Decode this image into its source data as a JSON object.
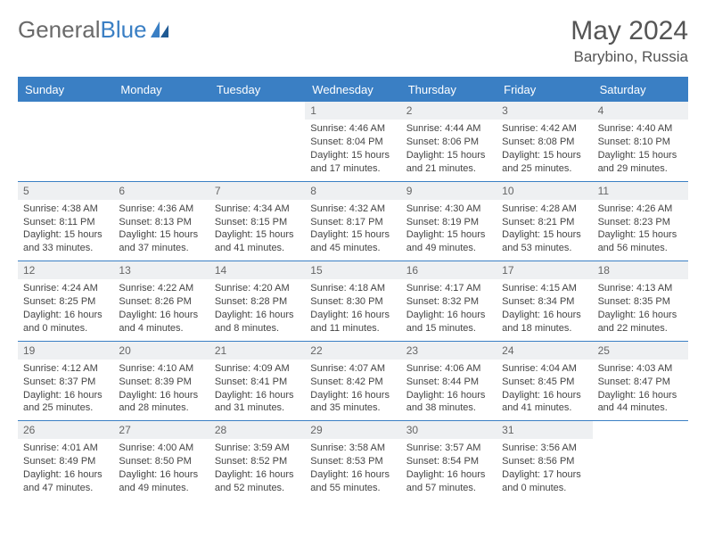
{
  "brand": {
    "part1": "General",
    "part2": "Blue"
  },
  "title": "May 2024",
  "location": "Barybino, Russia",
  "colors": {
    "primary": "#3a7fc4",
    "header_text": "#555555",
    "body_text": "#444444",
    "daynum_bg": "#eef0f2",
    "background": "#ffffff"
  },
  "dow": [
    "Sunday",
    "Monday",
    "Tuesday",
    "Wednesday",
    "Thursday",
    "Friday",
    "Saturday"
  ],
  "weeks": [
    [
      null,
      null,
      null,
      {
        "n": "1",
        "sr": "Sunrise: 4:46 AM",
        "ss": "Sunset: 8:04 PM",
        "d1": "Daylight: 15 hours",
        "d2": "and 17 minutes."
      },
      {
        "n": "2",
        "sr": "Sunrise: 4:44 AM",
        "ss": "Sunset: 8:06 PM",
        "d1": "Daylight: 15 hours",
        "d2": "and 21 minutes."
      },
      {
        "n": "3",
        "sr": "Sunrise: 4:42 AM",
        "ss": "Sunset: 8:08 PM",
        "d1": "Daylight: 15 hours",
        "d2": "and 25 minutes."
      },
      {
        "n": "4",
        "sr": "Sunrise: 4:40 AM",
        "ss": "Sunset: 8:10 PM",
        "d1": "Daylight: 15 hours",
        "d2": "and 29 minutes."
      }
    ],
    [
      {
        "n": "5",
        "sr": "Sunrise: 4:38 AM",
        "ss": "Sunset: 8:11 PM",
        "d1": "Daylight: 15 hours",
        "d2": "and 33 minutes."
      },
      {
        "n": "6",
        "sr": "Sunrise: 4:36 AM",
        "ss": "Sunset: 8:13 PM",
        "d1": "Daylight: 15 hours",
        "d2": "and 37 minutes."
      },
      {
        "n": "7",
        "sr": "Sunrise: 4:34 AM",
        "ss": "Sunset: 8:15 PM",
        "d1": "Daylight: 15 hours",
        "d2": "and 41 minutes."
      },
      {
        "n": "8",
        "sr": "Sunrise: 4:32 AM",
        "ss": "Sunset: 8:17 PM",
        "d1": "Daylight: 15 hours",
        "d2": "and 45 minutes."
      },
      {
        "n": "9",
        "sr": "Sunrise: 4:30 AM",
        "ss": "Sunset: 8:19 PM",
        "d1": "Daylight: 15 hours",
        "d2": "and 49 minutes."
      },
      {
        "n": "10",
        "sr": "Sunrise: 4:28 AM",
        "ss": "Sunset: 8:21 PM",
        "d1": "Daylight: 15 hours",
        "d2": "and 53 minutes."
      },
      {
        "n": "11",
        "sr": "Sunrise: 4:26 AM",
        "ss": "Sunset: 8:23 PM",
        "d1": "Daylight: 15 hours",
        "d2": "and 56 minutes."
      }
    ],
    [
      {
        "n": "12",
        "sr": "Sunrise: 4:24 AM",
        "ss": "Sunset: 8:25 PM",
        "d1": "Daylight: 16 hours",
        "d2": "and 0 minutes."
      },
      {
        "n": "13",
        "sr": "Sunrise: 4:22 AM",
        "ss": "Sunset: 8:26 PM",
        "d1": "Daylight: 16 hours",
        "d2": "and 4 minutes."
      },
      {
        "n": "14",
        "sr": "Sunrise: 4:20 AM",
        "ss": "Sunset: 8:28 PM",
        "d1": "Daylight: 16 hours",
        "d2": "and 8 minutes."
      },
      {
        "n": "15",
        "sr": "Sunrise: 4:18 AM",
        "ss": "Sunset: 8:30 PM",
        "d1": "Daylight: 16 hours",
        "d2": "and 11 minutes."
      },
      {
        "n": "16",
        "sr": "Sunrise: 4:17 AM",
        "ss": "Sunset: 8:32 PM",
        "d1": "Daylight: 16 hours",
        "d2": "and 15 minutes."
      },
      {
        "n": "17",
        "sr": "Sunrise: 4:15 AM",
        "ss": "Sunset: 8:34 PM",
        "d1": "Daylight: 16 hours",
        "d2": "and 18 minutes."
      },
      {
        "n": "18",
        "sr": "Sunrise: 4:13 AM",
        "ss": "Sunset: 8:35 PM",
        "d1": "Daylight: 16 hours",
        "d2": "and 22 minutes."
      }
    ],
    [
      {
        "n": "19",
        "sr": "Sunrise: 4:12 AM",
        "ss": "Sunset: 8:37 PM",
        "d1": "Daylight: 16 hours",
        "d2": "and 25 minutes."
      },
      {
        "n": "20",
        "sr": "Sunrise: 4:10 AM",
        "ss": "Sunset: 8:39 PM",
        "d1": "Daylight: 16 hours",
        "d2": "and 28 minutes."
      },
      {
        "n": "21",
        "sr": "Sunrise: 4:09 AM",
        "ss": "Sunset: 8:41 PM",
        "d1": "Daylight: 16 hours",
        "d2": "and 31 minutes."
      },
      {
        "n": "22",
        "sr": "Sunrise: 4:07 AM",
        "ss": "Sunset: 8:42 PM",
        "d1": "Daylight: 16 hours",
        "d2": "and 35 minutes."
      },
      {
        "n": "23",
        "sr": "Sunrise: 4:06 AM",
        "ss": "Sunset: 8:44 PM",
        "d1": "Daylight: 16 hours",
        "d2": "and 38 minutes."
      },
      {
        "n": "24",
        "sr": "Sunrise: 4:04 AM",
        "ss": "Sunset: 8:45 PM",
        "d1": "Daylight: 16 hours",
        "d2": "and 41 minutes."
      },
      {
        "n": "25",
        "sr": "Sunrise: 4:03 AM",
        "ss": "Sunset: 8:47 PM",
        "d1": "Daylight: 16 hours",
        "d2": "and 44 minutes."
      }
    ],
    [
      {
        "n": "26",
        "sr": "Sunrise: 4:01 AM",
        "ss": "Sunset: 8:49 PM",
        "d1": "Daylight: 16 hours",
        "d2": "and 47 minutes."
      },
      {
        "n": "27",
        "sr": "Sunrise: 4:00 AM",
        "ss": "Sunset: 8:50 PM",
        "d1": "Daylight: 16 hours",
        "d2": "and 49 minutes."
      },
      {
        "n": "28",
        "sr": "Sunrise: 3:59 AM",
        "ss": "Sunset: 8:52 PM",
        "d1": "Daylight: 16 hours",
        "d2": "and 52 minutes."
      },
      {
        "n": "29",
        "sr": "Sunrise: 3:58 AM",
        "ss": "Sunset: 8:53 PM",
        "d1": "Daylight: 16 hours",
        "d2": "and 55 minutes."
      },
      {
        "n": "30",
        "sr": "Sunrise: 3:57 AM",
        "ss": "Sunset: 8:54 PM",
        "d1": "Daylight: 16 hours",
        "d2": "and 57 minutes."
      },
      {
        "n": "31",
        "sr": "Sunrise: 3:56 AM",
        "ss": "Sunset: 8:56 PM",
        "d1": "Daylight: 17 hours",
        "d2": "and 0 minutes."
      },
      null
    ]
  ]
}
